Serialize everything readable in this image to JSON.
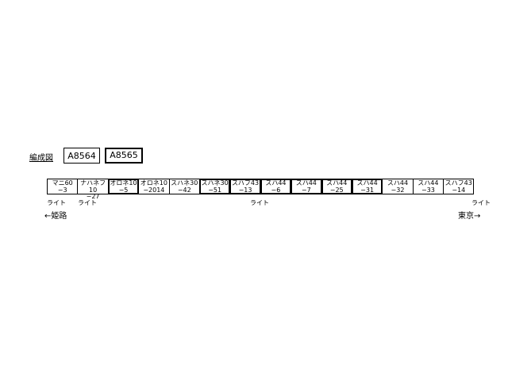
{
  "title": "編成図",
  "sets": [
    {
      "label": "A8564",
      "highlighted": false
    },
    {
      "label": "A8565",
      "highlighted": true
    }
  ],
  "cars": [
    {
      "name": "マニ60",
      "number": "−3",
      "set": "A8564"
    },
    {
      "name": "ナハネフ10",
      "number": "−27",
      "set": "A8564"
    },
    {
      "name": "オロネ10",
      "number": "−5",
      "set": "A8565"
    },
    {
      "name": "オロネ10",
      "number": "−2014",
      "set": "A8564"
    },
    {
      "name": "スハネ30",
      "number": "−42",
      "set": "A8564"
    },
    {
      "name": "スハネ30",
      "number": "−51",
      "set": "A8565"
    },
    {
      "name": "スハフ43",
      "number": "−13",
      "set": "A8565"
    },
    {
      "name": "スハ44",
      "number": "−6",
      "set": "A8565"
    },
    {
      "name": "スハ44",
      "number": "−7",
      "set": "A8565"
    },
    {
      "name": "スハ44",
      "number": "−25",
      "set": "A8565"
    },
    {
      "name": "スハ44",
      "number": "−31",
      "set": "A8565"
    },
    {
      "name": "スハ44",
      "number": "−32",
      "set": "A8564"
    },
    {
      "name": "スハ44",
      "number": "−33",
      "set": "A8564"
    },
    {
      "name": "スハフ43",
      "number": "−14",
      "set": "A8564"
    }
  ],
  "light_labels": [
    "ライト",
    "ライト",
    "ライト",
    "ライト"
  ],
  "direction_left": "←姫路",
  "direction_right": "東京→"
}
